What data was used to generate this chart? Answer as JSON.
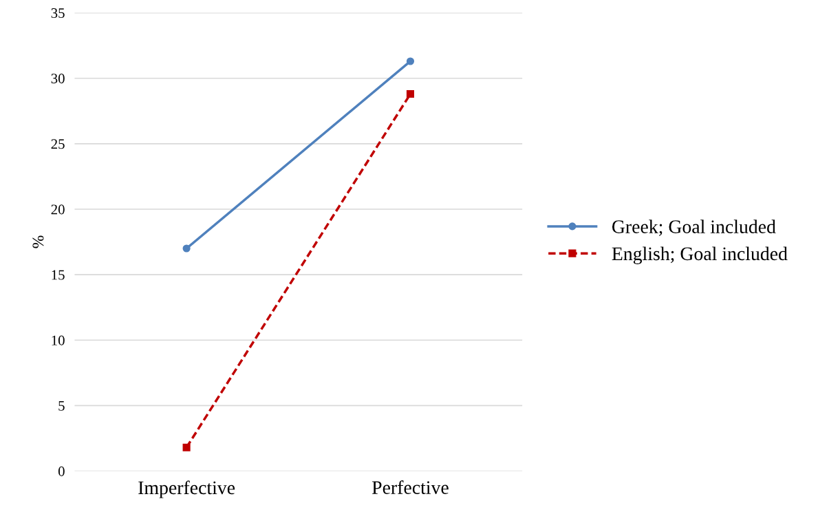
{
  "chart_data": {
    "type": "line",
    "ylabel": "%",
    "categories": [
      "Imperfective",
      "Perfective"
    ],
    "series": [
      {
        "name": "Greek; Goal included",
        "color": "#4f81bd",
        "values": [
          17.0,
          31.3
        ],
        "marker": "circle",
        "line_style": "solid"
      },
      {
        "name": "English; Goal included",
        "color": "#c00000",
        "values": [
          1.8,
          28.8
        ],
        "marker": "square",
        "line_style": "dashed"
      }
    ],
    "ylim": [
      0,
      35
    ],
    "yticks": [
      0,
      5,
      10,
      15,
      20,
      25,
      30,
      35
    ],
    "grid": "y",
    "legend": "right"
  }
}
